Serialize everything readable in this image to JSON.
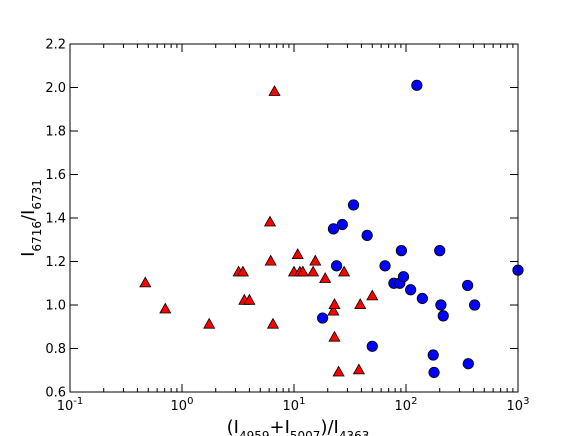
{
  "chart_data": {
    "type": "scatter",
    "xscale": "log",
    "xlim": [
      0.1,
      1000
    ],
    "ylim": [
      0.6,
      2.2
    ],
    "grid": false,
    "xlabel": {
      "parts": [
        {
          "t": "(I",
          "sub": false
        },
        {
          "t": "4959",
          "sub": true
        },
        {
          "t": "+I",
          "sub": false
        },
        {
          "t": "5007",
          "sub": true
        },
        {
          "t": ")/I",
          "sub": false
        },
        {
          "t": "4363",
          "sub": true
        }
      ]
    },
    "ylabel": {
      "parts": [
        {
          "t": "I",
          "sub": false
        },
        {
          "t": "6716",
          "sub": true
        },
        {
          "t": "/I",
          "sub": false
        },
        {
          "t": "6731",
          "sub": true
        }
      ]
    },
    "x_ticks": [
      {
        "value": 0.1,
        "base": "10",
        "exp": "-1"
      },
      {
        "value": 1,
        "base": "10",
        "exp": "0"
      },
      {
        "value": 10,
        "base": "10",
        "exp": "1"
      },
      {
        "value": 100,
        "base": "10",
        "exp": "2"
      },
      {
        "value": 1000,
        "base": "10",
        "exp": "3"
      }
    ],
    "y_ticks": [
      {
        "value": 0.6,
        "label": "0.6"
      },
      {
        "value": 0.8,
        "label": "0.8"
      },
      {
        "value": 1.0,
        "label": "1.0"
      },
      {
        "value": 1.2,
        "label": "1.2"
      },
      {
        "value": 1.4,
        "label": "1.4"
      },
      {
        "value": 1.6,
        "label": "1.6"
      },
      {
        "value": 1.8,
        "label": "1.8"
      },
      {
        "value": 2.0,
        "label": "2.0"
      },
      {
        "value": 2.2,
        "label": "2.2"
      }
    ],
    "series": [
      {
        "marker": "triangle",
        "color": "#ff0000",
        "points": [
          [
            0.47,
            1.1
          ],
          [
            0.71,
            0.98
          ],
          [
            1.75,
            0.91
          ],
          [
            3.2,
            1.15
          ],
          [
            3.5,
            1.15
          ],
          [
            3.6,
            1.02
          ],
          [
            4.0,
            1.02
          ],
          [
            6.1,
            1.38
          ],
          [
            6.2,
            1.2
          ],
          [
            6.5,
            0.91
          ],
          [
            6.7,
            1.98
          ],
          [
            10.0,
            1.15
          ],
          [
            10.8,
            1.23
          ],
          [
            11.3,
            1.15
          ],
          [
            12.0,
            1.15
          ],
          [
            14.8,
            1.15
          ],
          [
            15.5,
            1.2
          ],
          [
            19.0,
            1.12
          ],
          [
            22.5,
            0.97
          ],
          [
            23.0,
            1.0
          ],
          [
            23.0,
            0.85
          ],
          [
            25.0,
            0.69
          ],
          [
            28.0,
            1.15
          ],
          [
            38.0,
            0.7
          ],
          [
            39.0,
            1.0
          ],
          [
            50.0,
            1.04
          ]
        ]
      },
      {
        "marker": "circle",
        "color": "#0000ff",
        "points": [
          [
            18.0,
            0.94
          ],
          [
            22.5,
            1.35
          ],
          [
            24.0,
            1.18
          ],
          [
            27.0,
            1.37
          ],
          [
            34.0,
            1.46
          ],
          [
            45.0,
            1.32
          ],
          [
            50.0,
            0.81
          ],
          [
            65.0,
            1.18
          ],
          [
            78.0,
            1.1
          ],
          [
            88.0,
            1.1
          ],
          [
            91.0,
            1.25
          ],
          [
            95.0,
            1.13
          ],
          [
            110.0,
            1.07
          ],
          [
            125.0,
            2.01
          ],
          [
            140.0,
            1.03
          ],
          [
            175.0,
            0.77
          ],
          [
            178.0,
            0.69
          ],
          [
            200.0,
            1.25
          ],
          [
            205.0,
            1.0
          ],
          [
            215.0,
            0.95
          ],
          [
            355.0,
            1.09
          ],
          [
            360.0,
            0.73
          ],
          [
            410.0,
            1.0
          ],
          [
            1000.0,
            1.16
          ]
        ]
      }
    ]
  }
}
